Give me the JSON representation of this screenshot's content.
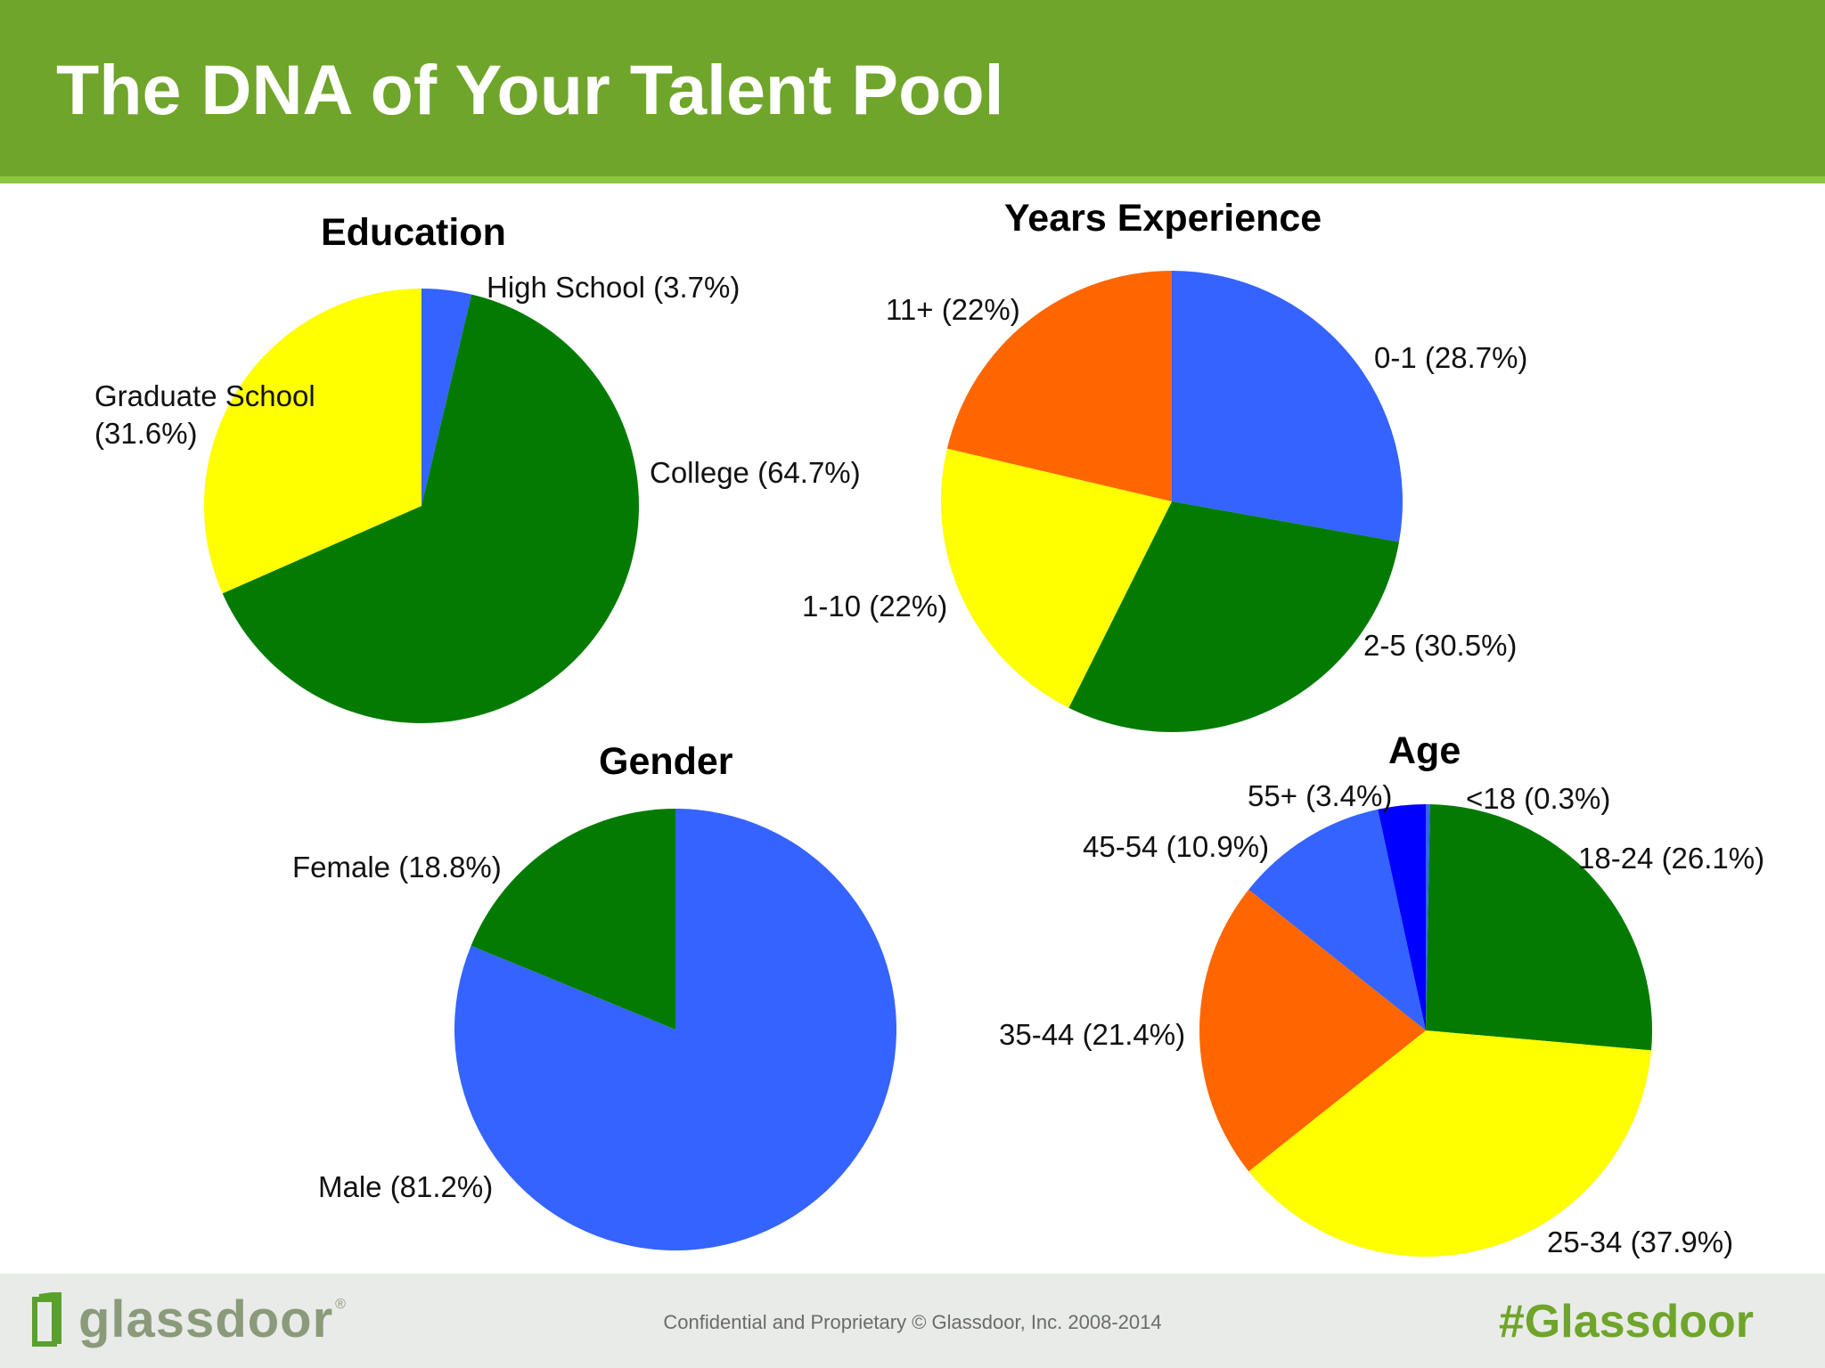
{
  "slide": {
    "title": "The DNA of Your Talent Pool"
  },
  "colors": {
    "header": "#6fa52a",
    "accent": "#8dc63f",
    "blue": "#3563ff",
    "green": "#027b00",
    "yellow": "#ffff00",
    "orange": "#ff6600",
    "deep_blue": "#0000ff"
  },
  "chart_data": [
    {
      "type": "pie",
      "title": "Education",
      "slices": [
        {
          "label": "High School (3.7%)",
          "value": 3.7,
          "color": "#3563ff"
        },
        {
          "label": "College (64.7%)",
          "value": 64.7,
          "color": "#027b00"
        },
        {
          "label": "Graduate School (31.6%)",
          "value": 31.6,
          "color": "#ffff00"
        }
      ]
    },
    {
      "type": "pie",
      "title": "Years Experience",
      "slices": [
        {
          "label": "0-1 (28.7%)",
          "value": 28.7,
          "color": "#3563ff"
        },
        {
          "label": "2-5 (30.5%)",
          "value": 30.5,
          "color": "#027b00"
        },
        {
          "label": "1-10 (22%)",
          "value": 22,
          "color": "#ffff00"
        },
        {
          "label": "11+ (22%)",
          "value": 22,
          "color": "#ff6600"
        }
      ]
    },
    {
      "type": "pie",
      "title": "Gender",
      "slices": [
        {
          "label": "Male (81.2%)",
          "value": 81.2,
          "color": "#3563ff"
        },
        {
          "label": "Female (18.8%)",
          "value": 18.8,
          "color": "#027b00"
        }
      ]
    },
    {
      "type": "pie",
      "title": "Age",
      "slices": [
        {
          "label": "<18 (0.3%)",
          "value": 0.3,
          "color": "#3563ff"
        },
        {
          "label": "18-24 (26.1%)",
          "value": 26.1,
          "color": "#027b00"
        },
        {
          "label": "25-34 (37.9%)",
          "value": 37.9,
          "color": "#ffff00"
        },
        {
          "label": "35-44 (21.4%)",
          "value": 21.4,
          "color": "#ff6600"
        },
        {
          "label": "45-54 (10.9%)",
          "value": 10.9,
          "color": "#3563ff"
        },
        {
          "label": "55+ (3.4%)",
          "value": 3.4,
          "color": "#0000ff"
        }
      ]
    }
  ],
  "footer": {
    "logo_text": "glassdoor",
    "logo_reg": "®",
    "copyright": "Confidential and Proprietary © Glassdoor, Inc. 2008-2014",
    "hashtag": "#Glassdoor"
  }
}
